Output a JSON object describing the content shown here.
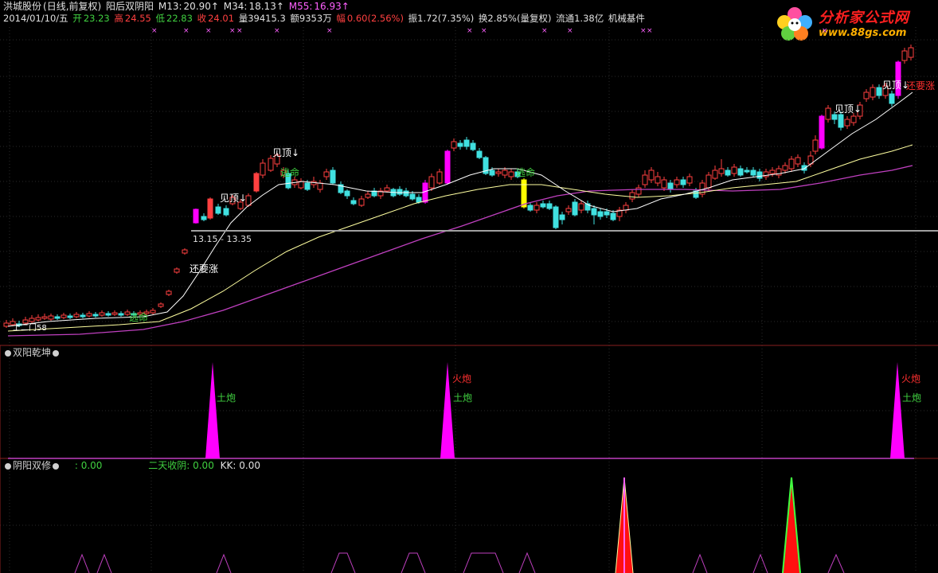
{
  "header": {
    "stock": "洪城股份",
    "period": "(日线,前复权)",
    "indicator": "阳后双阴阳",
    "ma": [
      {
        "label": "M13:",
        "value": "20.90↑",
        "color": "#e0e0e0"
      },
      {
        "label": "M34:",
        "value": "18.13↑",
        "color": "#ffff60"
      },
      {
        "label": "M55:",
        "value": "16.93↑",
        "color": "#ff60ff"
      }
    ]
  },
  "quote": {
    "date": "2014/01/10/五",
    "open_label": "开",
    "open": "23.23",
    "high_label": "高",
    "high": "24.55",
    "low_label": "低",
    "low": "22.83",
    "close_label": "收",
    "close": "24.01",
    "volume": "量39415.3",
    "amount": "额9353万",
    "change_label": "幅",
    "change": "0.60(2.56%)",
    "amplitude": "振1.72(7.35%)",
    "turnover": "换2.85%(量复权)",
    "float": "流通1.38亿",
    "sector": "机械基件"
  },
  "logo": {
    "name": "分析家公式网",
    "url": "www.88gs.com"
  },
  "annotations": {
    "range": "13.15 - 13.35",
    "still_up": "还要涨",
    "top1": "见顶↓",
    "top2": "见顶↓",
    "top3": "见顶↓",
    "top4": "见顶↓",
    "escape1": "逃命",
    "escape2": "逃命",
    "escape3": "逃命",
    "still_up2": "还要涨",
    "left_label": "上二门58"
  },
  "panel2": {
    "title": "双阳乾坤",
    "labels": {
      "tupao": "土炮",
      "huopao": "火炮"
    }
  },
  "panel3": {
    "title": "阴阳双修",
    "v1_label": ": 0.00",
    "v2_label": "二天收阴: 0.00",
    "v3_label": "KK: 0.00"
  },
  "colors": {
    "up": "#ff4040",
    "down": "#40e0e0",
    "magenta": "#ff00ff",
    "yellow": "#ffff00",
    "grid": "#3a3a3a"
  }
}
